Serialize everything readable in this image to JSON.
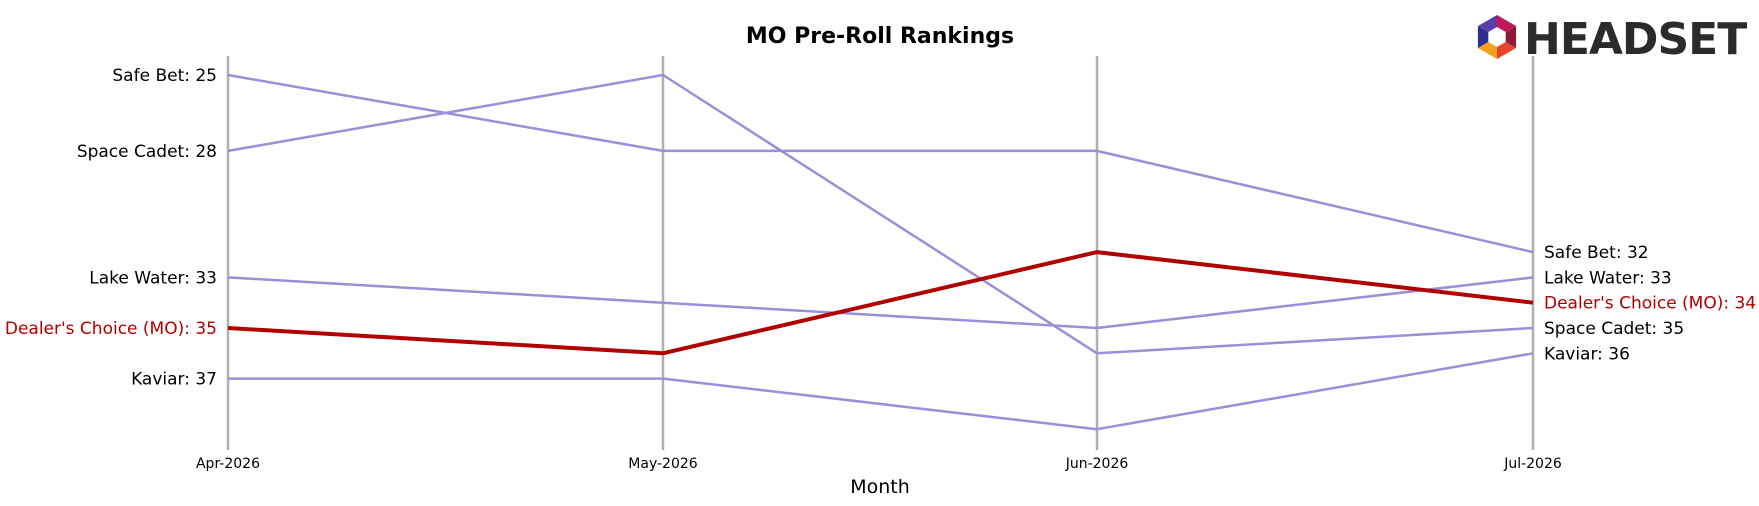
{
  "chart_data": {
    "type": "line",
    "title": "MO Pre-Roll Rankings",
    "xlabel": "Month",
    "ylabel": "",
    "categories": [
      "Apr-2026",
      "May-2026",
      "Jun-2026",
      "Jul-2026"
    ],
    "y_axis": {
      "inverted": true,
      "ylim": [
        24,
        40
      ]
    },
    "grid": false,
    "highlight_color": "#b00000",
    "other_color": "#9a8fd8",
    "axis_line_color": "#b0b0b0",
    "series": [
      {
        "name": "Safe Bet",
        "values": [
          25,
          28,
          28,
          32
        ],
        "highlight": false
      },
      {
        "name": "Space Cadet",
        "values": [
          28,
          25,
          36,
          35
        ],
        "highlight": false
      },
      {
        "name": "Lake Water",
        "values": [
          33,
          34,
          35,
          33
        ],
        "highlight": false
      },
      {
        "name": "Dealer's Choice (MO)",
        "values": [
          35,
          36,
          32,
          34
        ],
        "highlight": true
      },
      {
        "name": "Kaviar",
        "values": [
          37,
          37,
          39,
          36
        ],
        "highlight": false
      }
    ],
    "start_labels": [
      {
        "series": "Safe Bet",
        "text": "Safe Bet: 25"
      },
      {
        "series": "Space Cadet",
        "text": "Space Cadet: 28"
      },
      {
        "series": "Lake Water",
        "text": "Lake Water: 33"
      },
      {
        "series": "Dealer's Choice (MO)",
        "text": "Dealer's Choice (MO): 35"
      },
      {
        "series": "Kaviar",
        "text": "Kaviar: 37"
      }
    ],
    "end_labels": [
      {
        "series": "Safe Bet",
        "text": "Safe Bet: 32"
      },
      {
        "series": "Lake Water",
        "text": "Lake Water: 33"
      },
      {
        "series": "Dealer's Choice (MO)",
        "text": "Dealer's Choice (MO): 34"
      },
      {
        "series": "Space Cadet",
        "text": "Space Cadet: 35"
      },
      {
        "series": "Kaviar",
        "text": "Kaviar: 36"
      }
    ]
  },
  "logo": {
    "text": "HEADSET",
    "icon": "hexagon-logo-icon",
    "colors": [
      "#c2185b",
      "#8e1b3a",
      "#e8452c",
      "#f4a21b",
      "#2b2f8f",
      "#5a3ea8"
    ]
  }
}
